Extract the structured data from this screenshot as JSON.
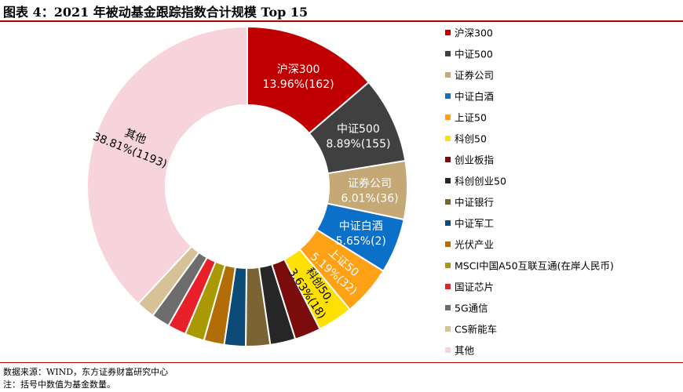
{
  "header": {
    "title": "图表 4：2021 年被动基金跟踪指数合计规模 Top 15"
  },
  "footer": {
    "source": "数据来源：WIND，东方证券财富研究中心",
    "note": "注：括号中数值为基金数量。"
  },
  "chart_data": {
    "type": "pie",
    "subtype": "donut",
    "title": "",
    "legend_position": "right",
    "start_angle_deg": 0,
    "direction": "clockwise",
    "slices": [
      {
        "name": "沪深300",
        "value": 13.96,
        "count": 162,
        "color": "#c00000",
        "label_line1": "沪深300",
        "label_line2": "13.96%(162)",
        "label_color": "#ffffff"
      },
      {
        "name": "中证500",
        "value": 8.89,
        "count": 155,
        "color": "#404040",
        "label_line1": "中证500",
        "label_line2": "8.89%(155)",
        "label_color": "#ffffff"
      },
      {
        "name": "证券公司",
        "value": 6.01,
        "count": 36,
        "color": "#c4a875",
        "label_line1": "证券公司",
        "label_line2": "6.01%(36)",
        "label_color": "#ffffff"
      },
      {
        "name": "中证白酒",
        "value": 5.65,
        "count": 2,
        "color": "#0b70c7",
        "label_line1": "中证白酒",
        "label_line2": "5.65%(2)",
        "label_color": "#ffffff"
      },
      {
        "name": "上证50",
        "value": 5.19,
        "count": 32,
        "color": "#ffa114",
        "label_line1": "上证50",
        "label_line2": "5.19%(32)",
        "label_color": "#ffffff"
      },
      {
        "name": "科创50",
        "value": 3.63,
        "count": 18,
        "color": "#ffe000",
        "label_line1": "科创50,",
        "label_line2": "3.63%(18)",
        "label_color": "#000000"
      },
      {
        "name": "创业板指",
        "value": 2.7,
        "color": "#7b0c0c"
      },
      {
        "name": "科创创业50",
        "value": 2.6,
        "color": "#262626"
      },
      {
        "name": "中证银行",
        "value": 2.5,
        "color": "#7a6433"
      },
      {
        "name": "中证军工",
        "value": 2.2,
        "color": "#0c4a78"
      },
      {
        "name": "光伏产业",
        "value": 2.1,
        "color": "#b36d06"
      },
      {
        "name": "MSCI中国A50互联互通(在岸人民币)",
        "value": 2.0,
        "color": "#a99a04"
      },
      {
        "name": "国证芯片",
        "value": 1.9,
        "color": "#e8202a"
      },
      {
        "name": "5G通信",
        "value": 1.9,
        "color": "#6d6d6d"
      },
      {
        "name": "CS新能车",
        "value": 1.9,
        "color": "#d6c296"
      },
      {
        "name": "其他",
        "value": 38.81,
        "count": 1193,
        "color": "#f7d4dc",
        "label_line1": "其他",
        "label_line2": "38.81%(1193)",
        "label_color": "#000000"
      }
    ]
  }
}
